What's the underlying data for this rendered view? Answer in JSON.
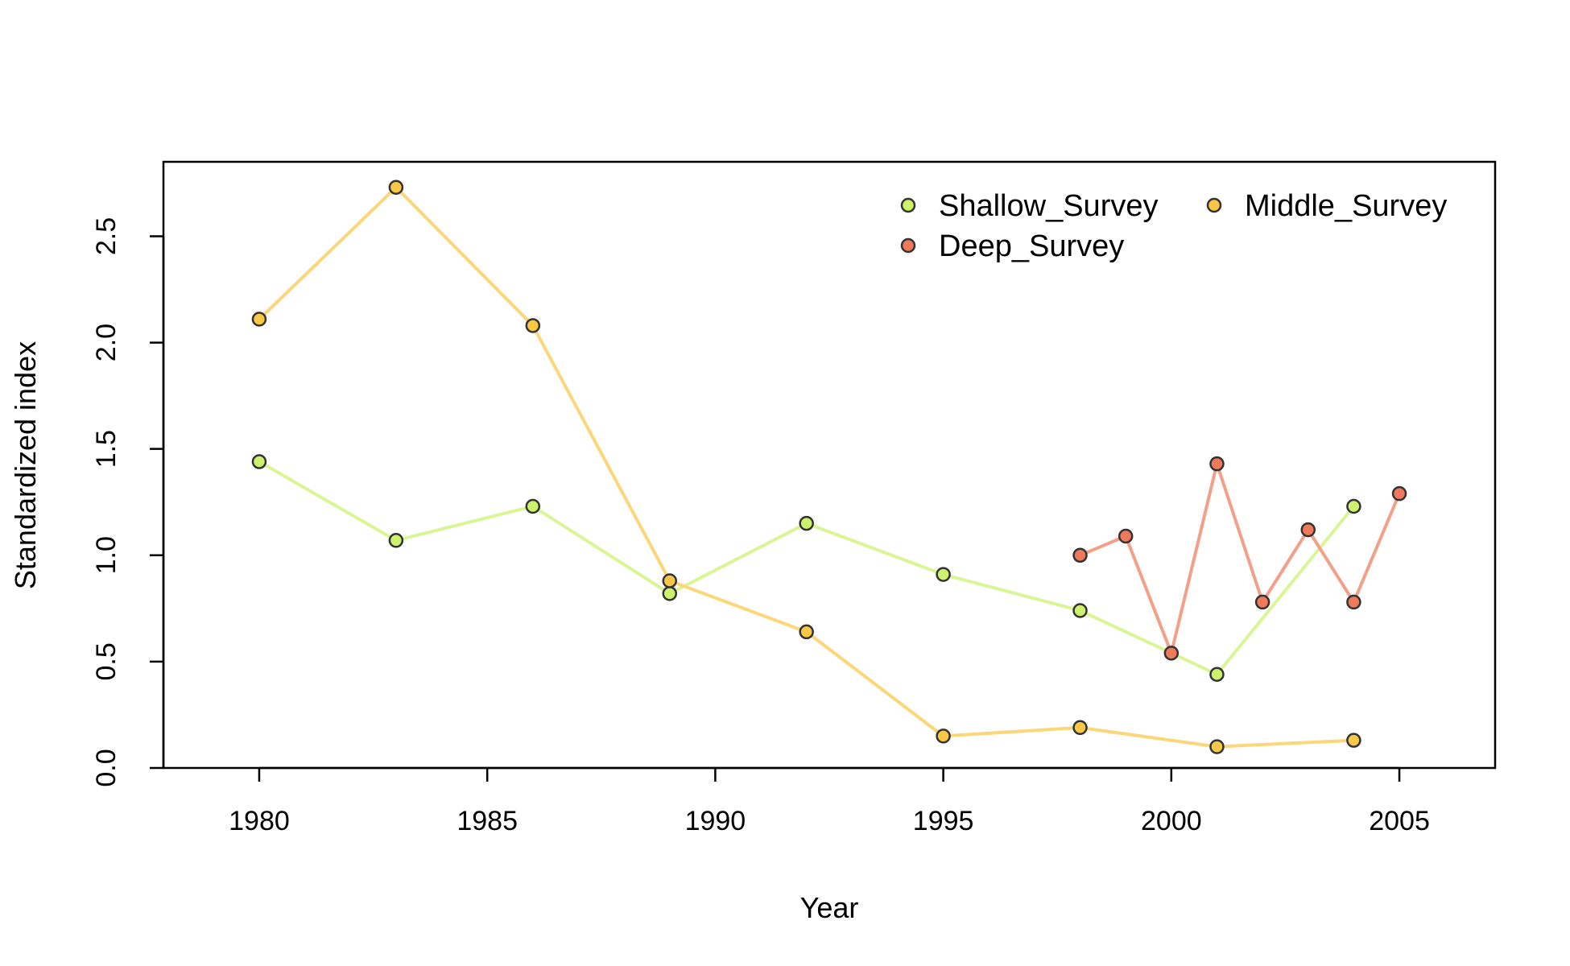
{
  "chart_data": {
    "type": "line",
    "xlabel": "Year",
    "ylabel": "Standardized index",
    "xlim": [
      1977.9,
      2007.1
    ],
    "ylim": [
      0.0,
      2.85
    ],
    "xticks": [
      1980,
      1985,
      1990,
      1995,
      2000,
      2005
    ],
    "yticks": [
      0.0,
      0.5,
      1.0,
      1.5,
      2.0,
      2.5
    ],
    "legend": {
      "position": "top-right",
      "columns": 2
    },
    "series": [
      {
        "name": "Shallow_Survey",
        "color": "#ccf36b",
        "x": [
          1980,
          1983,
          1986,
          1989,
          1992,
          1995,
          1998,
          2001,
          2004
        ],
        "y": [
          1.44,
          1.07,
          1.23,
          0.82,
          1.15,
          0.91,
          0.74,
          0.44,
          1.23
        ]
      },
      {
        "name": "Middle_Survey",
        "color": "#fbc845",
        "x": [
          1980,
          1983,
          1986,
          1989,
          1992,
          1995,
          1998,
          2001,
          2004
        ],
        "y": [
          2.11,
          2.73,
          2.08,
          0.88,
          0.64,
          0.15,
          0.19,
          0.1,
          0.13
        ]
      },
      {
        "name": "Deep_Survey",
        "color": "#ef7a5b",
        "x": [
          1998,
          1999,
          2000,
          2001,
          2002,
          2003,
          2004,
          2005
        ],
        "y": [
          1.0,
          1.09,
          0.54,
          1.43,
          0.78,
          1.12,
          0.78,
          1.29
        ]
      }
    ]
  }
}
